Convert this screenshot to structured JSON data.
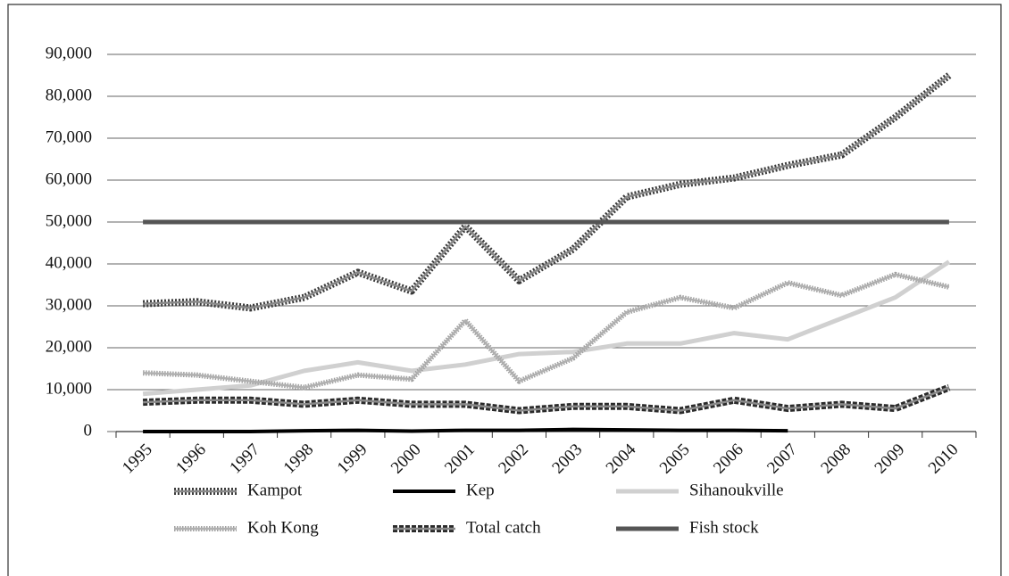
{
  "chart_data": {
    "type": "line",
    "categories": [
      "1995",
      "1996",
      "1997",
      "1998",
      "1999",
      "2000",
      "2001",
      "2002",
      "2003",
      "2004",
      "2005",
      "2006",
      "2007",
      "2008",
      "2009",
      "2010"
    ],
    "series": [
      {
        "name": "Kampot",
        "color": "#3a3a3a",
        "values": [
          30500,
          31000,
          29500,
          32000,
          38000,
          33500,
          49000,
          36000,
          43500,
          56000,
          59000,
          60500,
          63500,
          66000,
          75000,
          85000
        ]
      },
      {
        "name": "Kep",
        "color": "#000000",
        "values": [
          0,
          0,
          0,
          200,
          300,
          100,
          300,
          300,
          500,
          400,
          300,
          300,
          200,
          null,
          null,
          null
        ]
      },
      {
        "name": "Sihanoukville",
        "color": "#d0d0d0",
        "values": [
          9000,
          10000,
          11000,
          14500,
          16500,
          14500,
          16000,
          18500,
          19000,
          21000,
          21000,
          23500,
          22000,
          27000,
          32000,
          40500
        ]
      },
      {
        "name": "Koh Kong",
        "color": "#a0a0a0",
        "values": [
          14000,
          13500,
          12000,
          10500,
          13500,
          12500,
          26500,
          12000,
          17500,
          28500,
          32000,
          29500,
          35500,
          32500,
          37500,
          34500
        ]
      },
      {
        "name": "Total catch",
        "color": "#2a2a2a",
        "values": [
          7000,
          7500,
          7500,
          6500,
          7500,
          6500,
          6500,
          5000,
          6000,
          6000,
          5000,
          7500,
          5500,
          6500,
          5500,
          10500
        ]
      },
      {
        "name": "Fish stock",
        "color": "#555555",
        "values": [
          50000,
          50000,
          50000,
          50000,
          50000,
          50000,
          50000,
          50000,
          50000,
          50000,
          50000,
          50000,
          50000,
          50000,
          50000,
          50000
        ]
      }
    ],
    "ylim": [
      0,
      90000
    ],
    "yticks": [
      0,
      {
        "value": 10000,
        "label": "10,000"
      },
      {
        "value": 20000,
        "label": "20,000"
      },
      {
        "value": 30000,
        "label": "30,000"
      },
      {
        "value": 40000,
        "label": "40,000"
      },
      {
        "value": 50000,
        "label": "50,000"
      },
      {
        "value": 60000,
        "label": "60,000"
      },
      {
        "value": 70000,
        "label": "70,000"
      },
      {
        "value": 80000,
        "label": "80,000"
      },
      {
        "value": 90000,
        "label": "90,000"
      }
    ],
    "grid": true,
    "legend": "bottom"
  }
}
